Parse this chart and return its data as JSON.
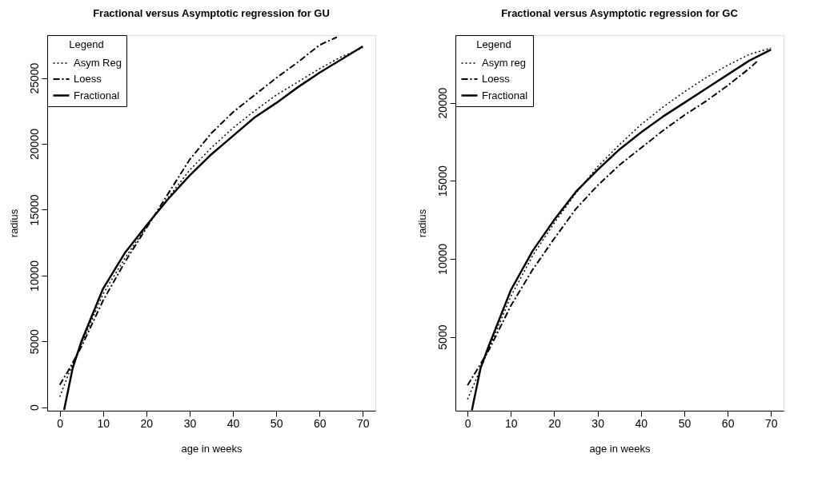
{
  "chart_data": [
    {
      "type": "line",
      "title": "Fractional versus Asymptotic regression for GU",
      "xlabel": "age in weeks",
      "ylabel": "radius",
      "legend_title": "Legend",
      "legend": "top left",
      "grid": false,
      "xlim": [
        -2.9,
        72.9
      ],
      "ylim": [
        -260,
        28250
      ],
      "xticks": [
        0,
        10,
        20,
        30,
        40,
        50,
        60,
        70
      ],
      "yticks": [
        0,
        5000,
        10000,
        15000,
        20000,
        25000
      ],
      "series": [
        {
          "name": "Asym Reg",
          "color": "#000000",
          "line_style": "dotted",
          "x": [
            0,
            2,
            5,
            10,
            15,
            20,
            25,
            30,
            35,
            40,
            45,
            50,
            55,
            60,
            65,
            70
          ],
          "values": [
            800,
            2500,
            4800,
            8600,
            11300,
            13700,
            15900,
            18000,
            19700,
            21200,
            22500,
            23700,
            24700,
            25700,
            26600,
            27300
          ]
        },
        {
          "name": "Loess",
          "color": "#000000",
          "line_style": "dashed",
          "x": [
            0,
            2,
            5,
            10,
            15,
            20,
            25,
            30,
            35,
            40,
            45,
            50,
            55,
            60,
            64
          ],
          "values": [
            1700,
            2800,
            4600,
            8100,
            11000,
            13600,
            16200,
            18800,
            20800,
            22400,
            23700,
            25000,
            26200,
            27500,
            28100
          ]
        },
        {
          "name": " Fractional",
          "color": "#000000",
          "line_style": "solid",
          "x": [
            1,
            3,
            5,
            10,
            15,
            20,
            25,
            30,
            35,
            40,
            45,
            50,
            55,
            60,
            65,
            70
          ],
          "values": [
            -200,
            3000,
            5000,
            9000,
            11700,
            13800,
            15800,
            17600,
            19200,
            20600,
            22000,
            23100,
            24300,
            25400,
            26400,
            27400
          ]
        }
      ]
    },
    {
      "type": "line",
      "title": "Fractional versus  Asymptotic regression for GC",
      "xlabel": "age in weeks",
      "ylabel": "radius",
      "legend_title": "Legend",
      "legend": "top left",
      "grid": false,
      "xlim": [
        -2.8,
        72.9
      ],
      "ylim": [
        270,
        24330
      ],
      "xticks": [
        0,
        10,
        20,
        30,
        40,
        50,
        60,
        70
      ],
      "yticks": [
        5000,
        10000,
        15000,
        20000
      ],
      "series": [
        {
          "name": "Asym reg",
          "color": "#000000",
          "line_style": "dotted",
          "x": [
            0,
            2,
            5,
            10,
            15,
            20,
            25,
            30,
            35,
            40,
            45,
            50,
            55,
            60,
            65,
            70
          ],
          "values": [
            1000,
            2300,
            4300,
            7600,
            10200,
            12300,
            14200,
            15900,
            17300,
            18600,
            19700,
            20700,
            21600,
            22400,
            23100,
            23500
          ]
        },
        {
          "name": "Loess",
          "color": "#000000",
          "line_style": "dashed",
          "x": [
            0,
            2,
            5,
            10,
            15,
            20,
            25,
            30,
            35,
            40,
            45,
            50,
            55,
            60,
            65,
            67
          ],
          "values": [
            1900,
            2800,
            4200,
            7000,
            9300,
            11300,
            13200,
            14700,
            16000,
            17100,
            18200,
            19200,
            20100,
            21100,
            22200,
            22700
          ]
        },
        {
          "name": " Fractional",
          "color": "#000000",
          "line_style": "solid",
          "x": [
            1,
            3,
            5,
            10,
            15,
            20,
            25,
            30,
            35,
            40,
            45,
            50,
            55,
            60,
            65,
            70
          ],
          "values": [
            300,
            3000,
            4500,
            8000,
            10500,
            12500,
            14300,
            15700,
            17000,
            18100,
            19100,
            20000,
            20900,
            21800,
            22700,
            23400
          ]
        }
      ]
    }
  ]
}
